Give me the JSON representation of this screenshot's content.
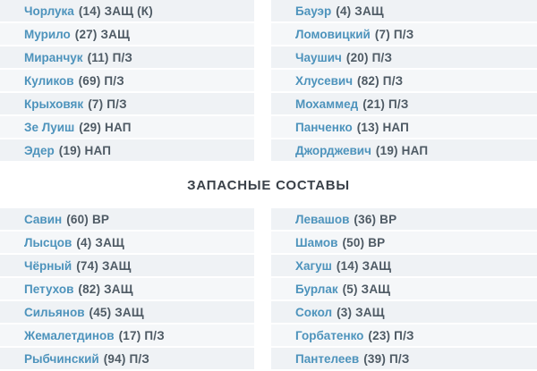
{
  "substitutes_header": "ЗАПАСНЫЕ СОСТАВЫ",
  "colors": {
    "player_name_link": "#4d93bc",
    "detail_text": "#4e5a64",
    "row_bg_odd": "#eff2f5",
    "row_bg_even": "#f5f7f9",
    "header_text": "#3a4149"
  },
  "starting": {
    "left": [
      {
        "name": "Чорлука",
        "detail": "(14) ЗАЩ (К)"
      },
      {
        "name": "Мурило",
        "detail": "(27) ЗАЩ"
      },
      {
        "name": "Миранчук",
        "detail": "(11) П/З"
      },
      {
        "name": "Куликов",
        "detail": "(69) П/З"
      },
      {
        "name": "Крыховяк",
        "detail": "(7) П/З"
      },
      {
        "name": "Зе Луиш",
        "detail": "(29) НАП"
      },
      {
        "name": "Эдер",
        "detail": "(19) НАП"
      }
    ],
    "right": [
      {
        "name": "Бауэр",
        "detail": "(4) ЗАЩ"
      },
      {
        "name": "Ломовицкий",
        "detail": "(7) П/З"
      },
      {
        "name": "Чаушич",
        "detail": "(20) П/З"
      },
      {
        "name": "Хлусевич",
        "detail": "(82) П/З"
      },
      {
        "name": "Мохаммед",
        "detail": "(21) П/З"
      },
      {
        "name": "Панченко",
        "detail": "(13) НАП"
      },
      {
        "name": "Джорджевич",
        "detail": "(19) НАП"
      }
    ]
  },
  "substitutes": {
    "left": [
      {
        "name": "Савин",
        "detail": "(60) ВР"
      },
      {
        "name": "Лысцов",
        "detail": "(4) ЗАЩ"
      },
      {
        "name": "Чёрный",
        "detail": "(74) ЗАЩ"
      },
      {
        "name": "Петухов",
        "detail": "(82) ЗАЩ"
      },
      {
        "name": "Сильянов",
        "detail": "(45) ЗАЩ"
      },
      {
        "name": "Жемалетдинов",
        "detail": "(17) П/З"
      },
      {
        "name": "Рыбчинский",
        "detail": "(94) П/З"
      }
    ],
    "right": [
      {
        "name": "Левашов",
        "detail": "(36) ВР"
      },
      {
        "name": "Шамов",
        "detail": "(50) ВР"
      },
      {
        "name": "Хагуш",
        "detail": "(14) ЗАЩ"
      },
      {
        "name": "Бурлак",
        "detail": "(5) ЗАЩ"
      },
      {
        "name": "Сокол",
        "detail": "(3) ЗАЩ"
      },
      {
        "name": "Горбатенко",
        "detail": "(23) П/З"
      },
      {
        "name": "Пантелеев",
        "detail": "(39) П/З"
      }
    ]
  }
}
